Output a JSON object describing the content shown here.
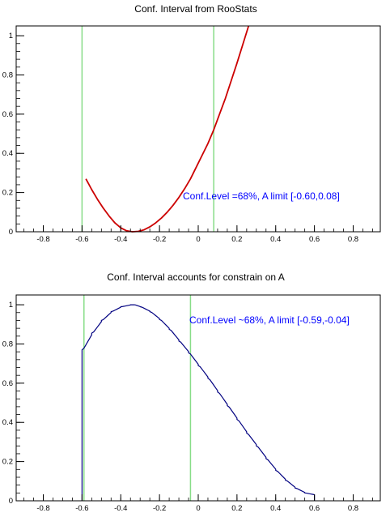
{
  "chart_data": [
    {
      "type": "line",
      "title": "Conf. Interval from RooStats",
      "xlabel": "",
      "ylabel": "",
      "xlim": [
        -0.94,
        0.94
      ],
      "ylim": [
        0,
        1.05
      ],
      "x_ticks": [
        "-0.8",
        "-0.6",
        "-0.4",
        "-0.2",
        "0",
        "0.2",
        "0.4",
        "0.6",
        "0.8"
      ],
      "y_ticks": [
        "0",
        "0.2",
        "0.4",
        "0.6",
        "0.8",
        "1"
      ],
      "series": [
        {
          "color": "#cc0000",
          "x": [
            -0.58,
            -0.55,
            -0.52,
            -0.49,
            -0.46,
            -0.43,
            -0.4,
            -0.37,
            -0.34,
            -0.31,
            -0.28,
            -0.25,
            -0.22,
            -0.19,
            -0.16,
            -0.13,
            -0.1,
            -0.07,
            -0.04,
            -0.01,
            0.02,
            0.05,
            0.08,
            0.11,
            0.14,
            0.17,
            0.2,
            0.23,
            0.26
          ],
          "y": [
            0.27,
            0.215,
            0.165,
            0.12,
            0.08,
            0.045,
            0.02,
            0.005,
            0.0,
            0.002,
            0.01,
            0.025,
            0.045,
            0.07,
            0.1,
            0.135,
            0.175,
            0.22,
            0.27,
            0.33,
            0.39,
            0.45,
            0.52,
            0.6,
            0.68,
            0.77,
            0.86,
            0.955,
            1.05
          ]
        }
      ],
      "vlines": [
        -0.6,
        0.08
      ],
      "annotation": "Conf.Level =68%, A limit [-0.60,0.08]",
      "grid": false
    },
    {
      "type": "line",
      "title": "Conf. Interval accounts for constrain on A",
      "xlabel": "",
      "ylabel": "",
      "xlim": [
        -0.94,
        0.94
      ],
      "ylim": [
        0,
        1.05
      ],
      "x_ticks": [
        "-0.8",
        "-0.6",
        "-0.4",
        "-0.2",
        "0",
        "0.2",
        "0.4",
        "0.6",
        "0.8"
      ],
      "y_ticks": [
        "0",
        "0.2",
        "0.4",
        "0.6",
        "0.8",
        "1"
      ],
      "series": [
        {
          "color": "#000080",
          "x": [
            -0.6,
            -0.55,
            -0.5,
            -0.45,
            -0.4,
            -0.35,
            -0.33,
            -0.3,
            -0.25,
            -0.2,
            -0.15,
            -0.1,
            -0.05,
            0.0,
            0.05,
            0.1,
            0.15,
            0.2,
            0.25,
            0.3,
            0.35,
            0.4,
            0.45,
            0.5,
            0.55,
            0.6
          ],
          "y": [
            0.77,
            0.855,
            0.92,
            0.965,
            0.99,
            1.0,
            1.0,
            0.99,
            0.965,
            0.925,
            0.875,
            0.815,
            0.755,
            0.69,
            0.625,
            0.555,
            0.485,
            0.415,
            0.345,
            0.28,
            0.215,
            0.155,
            0.105,
            0.065,
            0.04,
            0.03
          ]
        }
      ],
      "vlines": [
        -0.59,
        -0.04
      ],
      "annotation": "Conf.Level ~68%, A limit [-0.59,-0.04]",
      "grid": false
    }
  ],
  "colors": {
    "interval_line": "#88dd88",
    "axis": "#000000",
    "annotation": "#0000ff"
  }
}
